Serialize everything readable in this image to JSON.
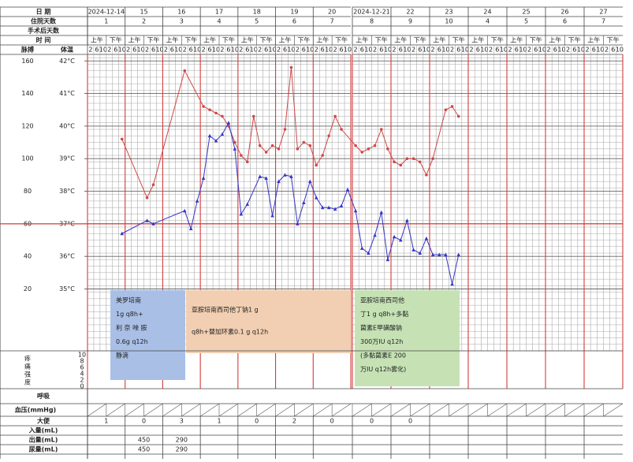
{
  "header": {
    "date_label": "日 期",
    "hospital_days_label": "住院天数",
    "post_op_label": "手术后天数",
    "time_label": "时 间",
    "pulse_label": "脉搏",
    "temp_label": "体温",
    "periods": [
      "上午",
      "下午"
    ]
  },
  "chart_data": {
    "type": "line",
    "dates": [
      "2024-12-14",
      "15",
      "16",
      "17",
      "18",
      "19",
      "20",
      "2024-12-21",
      "22",
      "23",
      "24",
      "25",
      "26",
      "27"
    ],
    "hospital_days": [
      1,
      2,
      3,
      4,
      5,
      6,
      7,
      8,
      9,
      10,
      4,
      5,
      6,
      7
    ],
    "categories": [
      "2",
      "6",
      "10",
      "2",
      "6",
      "10",
      "2",
      "6",
      "10",
      "2",
      "6",
      "10",
      "2",
      "6",
      "10",
      "2",
      "6",
      "10",
      "2",
      "6",
      "10",
      "2",
      "6",
      "10",
      "2",
      "6",
      "10",
      "2",
      "6",
      "10",
      "2",
      "6",
      "10",
      "2",
      "6",
      "10",
      "2",
      "6",
      "10",
      "2",
      "6",
      "10",
      "2",
      "6",
      "10",
      "2",
      "6",
      "10",
      "2",
      "6",
      "10",
      "2",
      "6",
      "10",
      "2",
      "6",
      "10",
      "2",
      "6",
      "10",
      "2",
      "6",
      "10",
      "2",
      "6",
      "10",
      "2",
      "6",
      "10",
      "2",
      "6",
      "10",
      "2",
      "6",
      "10",
      "2",
      "6",
      "10",
      "2",
      "6",
      "10",
      "2",
      "6",
      "10"
    ],
    "ylim": [
      -18,
      164
    ],
    "yticks": [
      160,
      140,
      120,
      100,
      80,
      60,
      40,
      20
    ],
    "y2lim": [
      33.1,
      42.2
    ],
    "y2ticks": [
      {
        "value": 42,
        "label": "42°C"
      },
      {
        "value": 41,
        "label": "41°C"
      },
      {
        "value": 40,
        "label": "40°C"
      },
      {
        "value": 39,
        "label": "39°C"
      },
      {
        "value": 38,
        "label": "38°C"
      },
      {
        "value": 37,
        "label": "37°C"
      },
      {
        "value": 36,
        "label": "36°C"
      },
      {
        "value": 35,
        "label": "35°C"
      }
    ],
    "series": [
      {
        "name": "体温",
        "color": "#d04848",
        "axis": "y2",
        "x": [
          5,
          9,
          10,
          15,
          18,
          19,
          20,
          21,
          22,
          23,
          24,
          25,
          26,
          27,
          28,
          29,
          30,
          31,
          32,
          33,
          34,
          35,
          36,
          37,
          38,
          39,
          40,
          42,
          43,
          44,
          45,
          46,
          47,
          48,
          49,
          50,
          51,
          52,
          53,
          54,
          56,
          57,
          58
        ],
        "values": [
          39.6,
          37.8,
          38.2,
          41.7,
          40.6,
          40.5,
          40.4,
          40.3,
          40.0,
          39.5,
          39.1,
          38.9,
          40.3,
          39.4,
          39.2,
          39.4,
          39.3,
          39.9,
          41.8,
          39.3,
          39.5,
          39.4,
          38.8,
          39.1,
          39.7,
          40.3,
          39.9,
          39.4,
          39.2,
          39.3,
          39.4,
          39.9,
          39.3,
          38.9,
          38.8,
          39.0,
          39.0,
          38.9,
          38.5,
          39.0,
          40.5,
          40.6,
          40.3
        ]
      },
      {
        "name": "脉搏",
        "color": "#3535c8",
        "x": [
          5,
          9,
          10,
          15,
          16,
          17,
          18,
          19,
          20,
          21,
          22,
          23,
          24,
          25,
          27,
          28,
          29,
          30,
          31,
          32,
          33,
          34,
          35,
          36,
          37,
          38,
          39,
          40,
          41,
          42,
          43,
          44,
          45,
          46,
          47,
          48,
          49,
          50,
          51,
          52,
          53,
          54,
          55,
          56,
          57,
          58
        ],
        "values": [
          54,
          62,
          60,
          68,
          57,
          74,
          88,
          114,
          111,
          115,
          122,
          106,
          66,
          72,
          89,
          88,
          65,
          86,
          90,
          89,
          60,
          73,
          86,
          76,
          70,
          70,
          69,
          71,
          81,
          68,
          45,
          42,
          53,
          67,
          38,
          52,
          50,
          62,
          44,
          42,
          51,
          41,
          41,
          41,
          23,
          41
        ]
      }
    ],
    "annotations": [
      {
        "color": "#a9bfe6",
        "lines": [
          "美罗培南",
          "1g q8h+",
          "利 奈 唑 胺",
          "0.6g q12h",
          "静滴"
        ]
      },
      {
        "color": "#f2cfb2",
        "lines": [
          "亚胺培南西司他丁钠1 g",
          "q8h+替加环素0.1 g q12h"
        ]
      },
      {
        "color": "#c6e2b5",
        "lines": [
          "亚胺培南西司他",
          "丁1 g q8h+多黏",
          "菌素E甲磺酸钠",
          "300万IU q12h",
          "(多黏菌素E 200",
          "万IU q12h雾化)"
        ]
      }
    ]
  },
  "pain": {
    "label": [
      "疼",
      "痛",
      "强",
      "度"
    ],
    "scale": [
      10,
      8,
      6,
      4,
      2,
      0
    ]
  },
  "records": {
    "labels": [
      "呼吸",
      "血压(mmHg)",
      "大便",
      "入量(mL)",
      "出量(mL)",
      "尿量(mL)"
    ],
    "bowel": [
      1,
      0,
      3,
      1,
      0,
      2,
      0,
      0,
      0,
      null,
      null,
      null,
      null,
      null
    ],
    "output": [
      null,
      450,
      290,
      null,
      null,
      null,
      null,
      null,
      null,
      null,
      null,
      null,
      null,
      null
    ],
    "urine": [
      null,
      450,
      290,
      null,
      null,
      null,
      null,
      null,
      null,
      null,
      null,
      null,
      null,
      null
    ]
  }
}
